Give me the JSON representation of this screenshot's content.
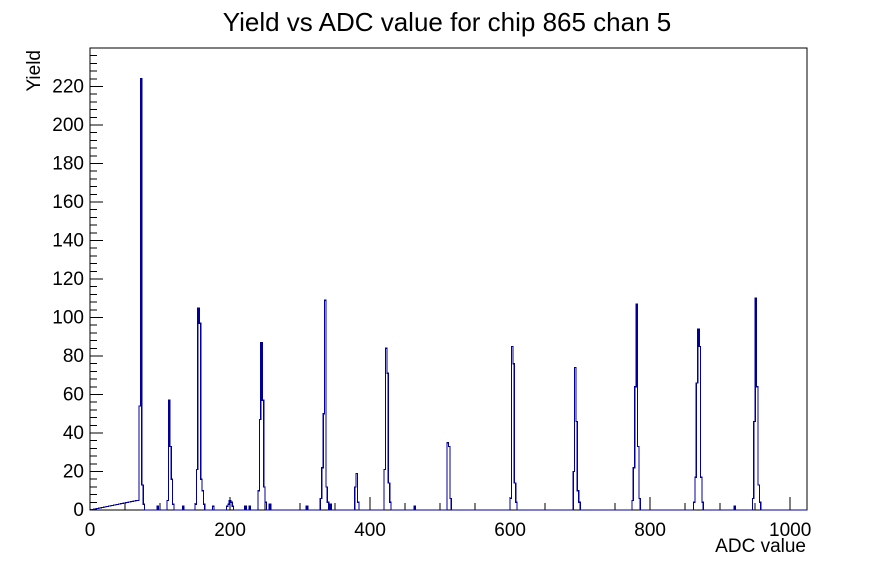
{
  "chart_data": {
    "type": "line",
    "style": "step-histogram",
    "title": "Yield vs ADC value for chip 865 chan 5",
    "xlabel": "ADC value",
    "ylabel": "Yield",
    "xlim": [
      0,
      1024
    ],
    "ylim": [
      0,
      240
    ],
    "x_major_ticks": [
      0,
      200,
      400,
      600,
      800,
      1000
    ],
    "x_minor_step": 50,
    "y_major_ticks": [
      0,
      20,
      40,
      60,
      80,
      100,
      120,
      140,
      160,
      180,
      200,
      220
    ],
    "y_minor_step": 4,
    "grid": "off",
    "legend": "none",
    "line_color": "#000099",
    "axis_color": "#000000",
    "bin_width": 2,
    "bins": [
      [
        69,
        5
      ],
      [
        71,
        54
      ],
      [
        73,
        224
      ],
      [
        75,
        13
      ],
      [
        77,
        3
      ],
      [
        97,
        2
      ],
      [
        111,
        5
      ],
      [
        113,
        57
      ],
      [
        115,
        33
      ],
      [
        117,
        16
      ],
      [
        119,
        3
      ],
      [
        133,
        2
      ],
      [
        151,
        3
      ],
      [
        153,
        21
      ],
      [
        155,
        105
      ],
      [
        157,
        97
      ],
      [
        159,
        16
      ],
      [
        161,
        10
      ],
      [
        163,
        3
      ],
      [
        176,
        2
      ],
      [
        196,
        2
      ],
      [
        198,
        3
      ],
      [
        200,
        5
      ],
      [
        202,
        4
      ],
      [
        204,
        2
      ],
      [
        222,
        2
      ],
      [
        228,
        2
      ],
      [
        241,
        10
      ],
      [
        243,
        47
      ],
      [
        245,
        87
      ],
      [
        247,
        57
      ],
      [
        249,
        12
      ],
      [
        251,
        4
      ],
      [
        257,
        3
      ],
      [
        310,
        2
      ],
      [
        330,
        6
      ],
      [
        332,
        22
      ],
      [
        334,
        50
      ],
      [
        336,
        109
      ],
      [
        338,
        12
      ],
      [
        340,
        4
      ],
      [
        344,
        3
      ],
      [
        379,
        12
      ],
      [
        381,
        19
      ],
      [
        383,
        4
      ],
      [
        421,
        21
      ],
      [
        423,
        84
      ],
      [
        425,
        71
      ],
      [
        427,
        14
      ],
      [
        429,
        4
      ],
      [
        464,
        2
      ],
      [
        511,
        35
      ],
      [
        513,
        33
      ],
      [
        515,
        6
      ],
      [
        601,
        6
      ],
      [
        603,
        85
      ],
      [
        605,
        76
      ],
      [
        607,
        14
      ],
      [
        609,
        4
      ],
      [
        691,
        20
      ],
      [
        693,
        74
      ],
      [
        695,
        46
      ],
      [
        697,
        10
      ],
      [
        699,
        4
      ],
      [
        775,
        5
      ],
      [
        777,
        22
      ],
      [
        779,
        64
      ],
      [
        781,
        107
      ],
      [
        783,
        33
      ],
      [
        785,
        6
      ],
      [
        863,
        4
      ],
      [
        865,
        17
      ],
      [
        867,
        66
      ],
      [
        869,
        94
      ],
      [
        871,
        85
      ],
      [
        873,
        17
      ],
      [
        875,
        4
      ],
      [
        921,
        2
      ],
      [
        947,
        6
      ],
      [
        949,
        46
      ],
      [
        951,
        110
      ],
      [
        953,
        64
      ],
      [
        955,
        13
      ],
      [
        957,
        4
      ]
    ]
  }
}
